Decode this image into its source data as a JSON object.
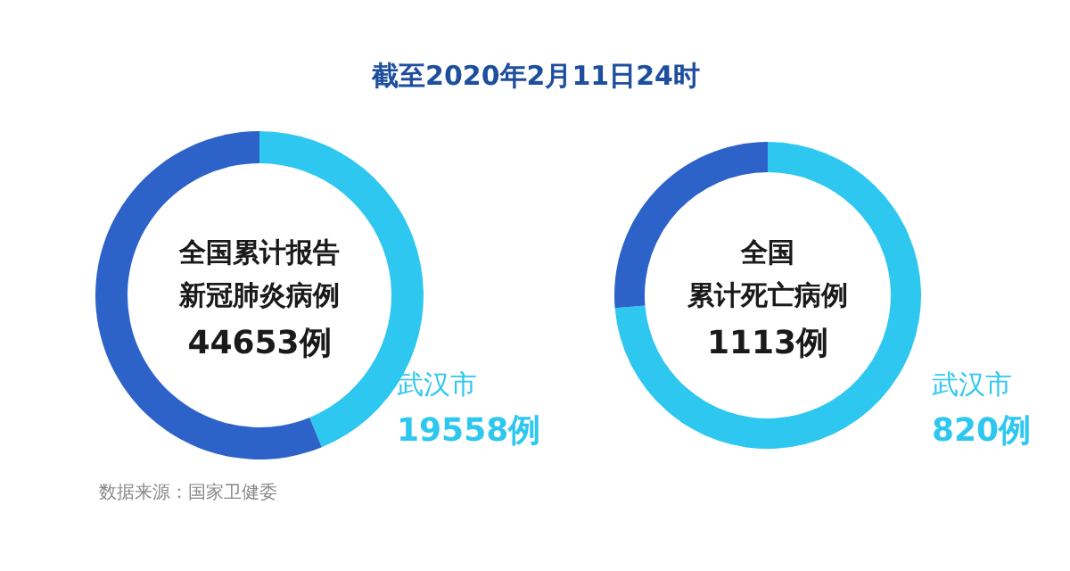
{
  "chart_data": [
    {
      "type": "donut",
      "title": "截至2020年2月11日24时",
      "categories": [
        "武汉市",
        null
      ],
      "values": [
        19558,
        25095
      ],
      "colors": [
        "#2ec7f0",
        "#2d63c8"
      ],
      "value_labels": [
        "19558例",
        null
      ],
      "annotations": [
        "全国累计报告",
        "新冠肺炎病例",
        "44653例",
        "数据来源：国家卫健委"
      ]
    },
    {
      "type": "donut",
      "categories": [
        "武汉市",
        null
      ],
      "values": [
        820,
        293
      ],
      "colors": [
        "#2ec7f0",
        "#2d63c8"
      ],
      "value_labels": [
        "820例",
        null
      ],
      "annotations": [
        "全国",
        "累计死亡病例",
        "1113例"
      ]
    }
  ]
}
